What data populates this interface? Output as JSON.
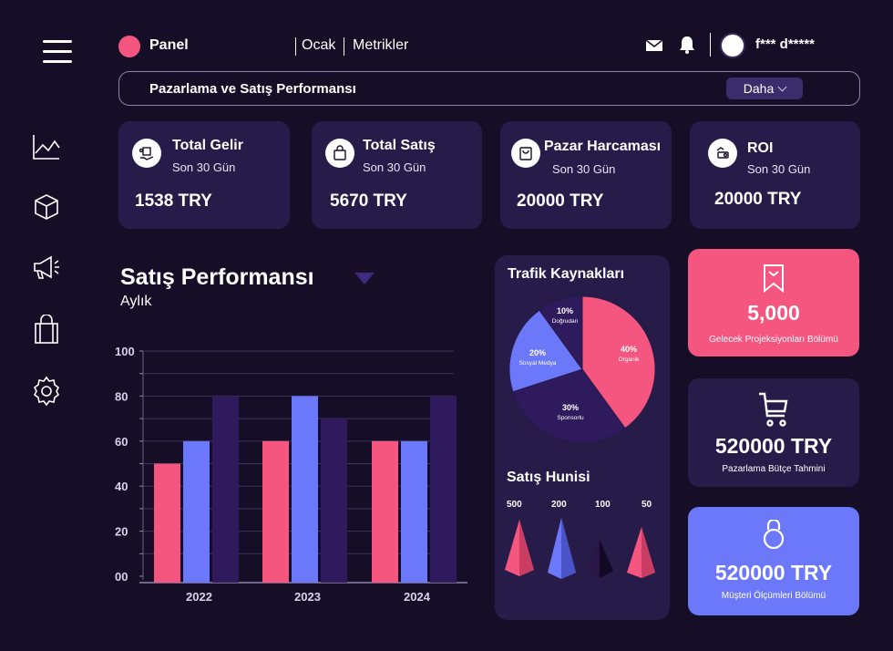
{
  "header": {
    "brand": "Panel",
    "nav": [
      "Ocak",
      "Metrikler"
    ],
    "user": "f*** d*****"
  },
  "subbar": {
    "title": "Pazarlama ve Satış Performansı",
    "more": "Daha"
  },
  "sidebar": {
    "icons": [
      "line-chart-icon",
      "cube-icon",
      "megaphone-icon",
      "shopping-bag-icon",
      "gear-icon"
    ]
  },
  "kpis": [
    {
      "title": "Total Gelir",
      "sub": "Son 30 Gün",
      "value": "1538 TRY",
      "icon": "delivery-icon"
    },
    {
      "title": "Total Satış",
      "sub": "Son 30 Gün",
      "value": "5670 TRY",
      "icon": "bag-icon"
    },
    {
      "title": "Pazar Harcaması",
      "sub": "Son 30 Gün",
      "value": "20000 TRY",
      "icon": "store-bag-icon"
    },
    {
      "title": "ROI",
      "sub": "Son 30 Gün",
      "value": "20000 TRY",
      "icon": "money-hand-icon"
    }
  ],
  "sales_chart": {
    "title": "Satış Performansı",
    "subtitle": "Aylık"
  },
  "traffic": {
    "title": "Trafik Kaynakları"
  },
  "funnel": {
    "title": "Satış Hunisi",
    "labels": [
      "500",
      "200",
      "100",
      "50"
    ]
  },
  "right_cards": [
    {
      "value": "5,000",
      "label": "Gelecek Projeksiyonları Bölümü",
      "icon": "bookmark-icon",
      "color": "#f4567f"
    },
    {
      "value": "520000 TRY",
      "label": "Pazarlama Bütçe Tahmini",
      "icon": "cart-icon",
      "color": "#271b4a"
    },
    {
      "value": "520000 TRY",
      "label": "Müşteri Ölçümleri Bölümü",
      "icon": "kettlebell-icon",
      "color": "#6c78fa"
    }
  ],
  "colors": {
    "pink": "#f4567f",
    "blue": "#6c78fa",
    "purple": "#2e1a5c",
    "card": "#271b4a",
    "bg": "#160d26"
  },
  "chart_data": [
    {
      "type": "bar",
      "categories": [
        "2022",
        "2023",
        "2024"
      ],
      "series": [
        {
          "values": [
            50,
            60,
            60
          ]
        },
        {
          "values": [
            60,
            80,
            60
          ]
        },
        {
          "values": [
            80,
            70,
            80
          ]
        }
      ],
      "yticks": [
        "00",
        "20",
        "40",
        "60",
        "80",
        "100"
      ],
      "ylim": [
        0,
        100
      ],
      "grid": true
    },
    {
      "type": "pie",
      "slices": [
        {
          "label": "Organik",
          "value": 40,
          "text": "40%"
        },
        {
          "label": "Sponsorlu",
          "value": 30,
          "text": "30%"
        },
        {
          "label": "Sosyal Medya",
          "value": 20,
          "text": "20%"
        },
        {
          "label": "Doğrudan",
          "value": 10,
          "text": "10%"
        }
      ]
    }
  ]
}
